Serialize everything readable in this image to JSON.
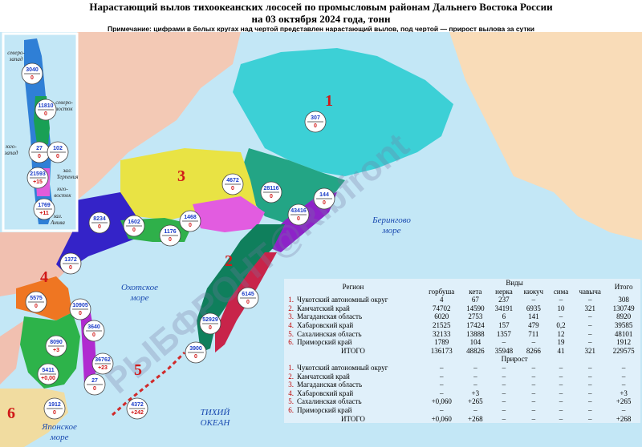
{
  "header": {
    "title": "Нарастающий вылов тихоокеанских лососей по промысловым районам Дальнего Востока России",
    "subtitle": "на 03 октября 2024 года, тонн",
    "note": "Примечание: цифрами в белых кругах над чертой представлен нарастающий вылов, под чертой — прирост вылова за сутки"
  },
  "map": {
    "region_numbers": [
      "1",
      "2",
      "3",
      "4",
      "5",
      "6"
    ],
    "sea_labels": [
      {
        "lines": [
          "Берингово",
          "море"
        ]
      },
      {
        "lines": [
          "Охотское",
          "море"
        ]
      },
      {
        "lines": [
          "ТИХИЙ",
          "ОКЕАН"
        ]
      },
      {
        "lines": [
          "Японское",
          "море"
        ]
      }
    ],
    "watermark": "РЫБФРОНТ@Ribfront",
    "circles": [
      {
        "top": "307",
        "bottom": "0"
      },
      {
        "top": "4672",
        "bottom": "0"
      },
      {
        "top": "28116",
        "bottom": "0"
      },
      {
        "top": "43416",
        "bottom": "0"
      },
      {
        "top": "144",
        "bottom": "0"
      },
      {
        "top": "8234",
        "bottom": "0"
      },
      {
        "top": "1602",
        "bottom": "0"
      },
      {
        "top": "1176",
        "bottom": "0"
      },
      {
        "top": "1468",
        "bottom": "0"
      },
      {
        "top": "1372",
        "bottom": "0"
      },
      {
        "top": "5575",
        "bottom": "0"
      },
      {
        "top": "10905",
        "bottom": "0"
      },
      {
        "top": "6145",
        "bottom": "0"
      },
      {
        "top": "52929",
        "bottom": "0"
      },
      {
        "top": "3900",
        "bottom": "0"
      },
      {
        "top": "8090",
        "bottom": "+3"
      },
      {
        "top": "3640",
        "bottom": "0"
      },
      {
        "top": "36762",
        "bottom": "+23"
      },
      {
        "top": "27",
        "bottom": "0"
      },
      {
        "top": "5411",
        "bottom": "+0,00"
      },
      {
        "top": "1912",
        "bottom": "0"
      },
      {
        "top": "4372",
        "bottom": "+242"
      }
    ]
  },
  "inset": {
    "labels": [
      {
        "lines": [
          "северо-",
          "запад"
        ]
      },
      {
        "lines": [
          "северо-",
          "восток"
        ]
      },
      {
        "lines": [
          "юго-",
          "запад"
        ]
      },
      {
        "lines": [
          "зал.",
          "Терпения"
        ]
      },
      {
        "lines": [
          "юго-",
          "восток"
        ]
      },
      {
        "lines": [
          "зал.",
          "Анива"
        ]
      }
    ],
    "circles": [
      {
        "top": "3040",
        "bottom": "0"
      },
      {
        "top": "11810",
        "bottom": "0"
      },
      {
        "top": "27",
        "bottom": "0"
      },
      {
        "top": "102",
        "bottom": "0"
      },
      {
        "top": "21593",
        "bottom": "+15"
      },
      {
        "top": "1769",
        "bottom": "+11"
      }
    ]
  },
  "table": {
    "region_header": "Регион",
    "species_header": "Виды",
    "total_header": "Итого",
    "species": [
      "горбуша",
      "кета",
      "нерка",
      "кижуч",
      "сима",
      "чавыча"
    ],
    "catch_rows": [
      {
        "num": "1.",
        "region": "Чукотский автономный округ",
        "values": [
          "4",
          "67",
          "237",
          "–",
          "–",
          "–",
          "308"
        ]
      },
      {
        "num": "2.",
        "region": "Камчатский край",
        "values": [
          "74702",
          "14590",
          "34191",
          "6935",
          "10",
          "321",
          "130749"
        ]
      },
      {
        "num": "3.",
        "region": "Магаданская область",
        "values": [
          "6020",
          "2753",
          "6",
          "141",
          "–",
          "–",
          "8920"
        ]
      },
      {
        "num": "4.",
        "region": "Хабаровский край",
        "values": [
          "21525",
          "17424",
          "157",
          "479",
          "0,2",
          "–",
          "39585"
        ]
      },
      {
        "num": "5.",
        "region": "Сахалинская область",
        "values": [
          "32133",
          "13888",
          "1357",
          "711",
          "12",
          "–",
          "48101"
        ]
      },
      {
        "num": "6.",
        "region": "Приморский край",
        "values": [
          "1789",
          "104",
          "–",
          "–",
          "19",
          "–",
          "1912"
        ]
      }
    ],
    "catch_total": {
      "label": "ИТОГО",
      "values": [
        "136173",
        "48826",
        "35948",
        "8266",
        "41",
        "321",
        "229575"
      ]
    },
    "growth_header": "Прирост",
    "growth_rows": [
      {
        "num": "1.",
        "region": "Чукотский автономный округ",
        "values": [
          "–",
          "–",
          "–",
          "–",
          "–",
          "–",
          "–"
        ]
      },
      {
        "num": "2.",
        "region": "Камчатский край",
        "values": [
          "–",
          "–",
          "–",
          "–",
          "–",
          "–",
          "–"
        ]
      },
      {
        "num": "3.",
        "region": "Магаданская область",
        "values": [
          "–",
          "–",
          "–",
          "–",
          "–",
          "–",
          "–"
        ]
      },
      {
        "num": "4.",
        "region": "Хабаровский край",
        "values": [
          "–",
          "+3",
          "–",
          "–",
          "–",
          "–",
          "+3"
        ]
      },
      {
        "num": "5.",
        "region": "Сахалинская область",
        "values": [
          "+0,060",
          "+265",
          "–",
          "–",
          "–",
          "–",
          "+265"
        ]
      },
      {
        "num": "6.",
        "region": "Приморский край",
        "values": [
          "–",
          "–",
          "–",
          "–",
          "–",
          "–",
          "–"
        ]
      }
    ],
    "growth_total": {
      "label": "ИТОГО",
      "values": [
        "+0,060",
        "+268",
        "–",
        "–",
        "–",
        "–",
        "+268"
      ]
    }
  }
}
